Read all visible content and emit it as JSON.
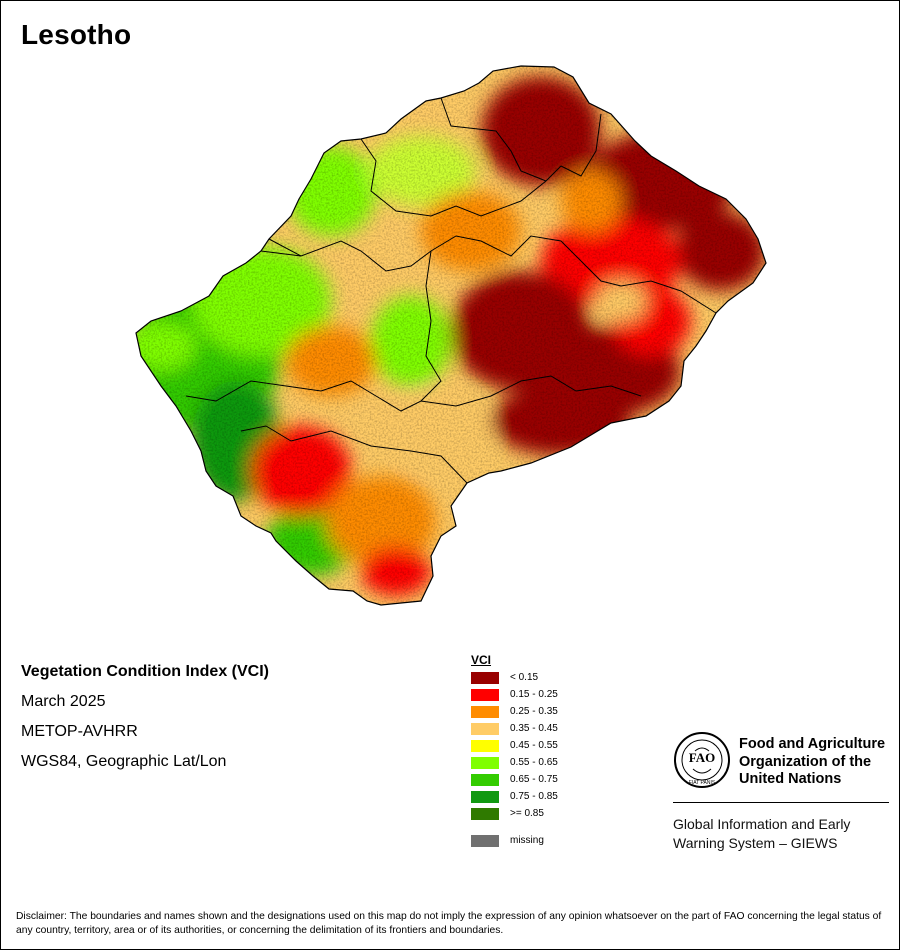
{
  "map": {
    "country": "Lesotho",
    "index_title": "Vegetation Condition Index (VCI)",
    "period": "March 2025",
    "sensor": "METOP-AVHRR",
    "projection": "WGS84, Geographic Lat/Lon"
  },
  "legend": {
    "title": "VCI",
    "classes": [
      {
        "label": "< 0.15",
        "color": "#990000"
      },
      {
        "label": "0.15 - 0.25",
        "color": "#ff0000"
      },
      {
        "label": "0.25 - 0.35",
        "color": "#ff8c00"
      },
      {
        "label": "0.35 - 0.45",
        "color": "#ffcc66"
      },
      {
        "label": "0.45 - 0.55",
        "color": "#ffff00"
      },
      {
        "label": "0.55 - 0.65",
        "color": "#80ff00"
      },
      {
        "label": "0.65 - 0.75",
        "color": "#33cc00"
      },
      {
        "label": "0.75 - 0.85",
        "color": "#119911"
      },
      {
        "label": ">= 0.85",
        "color": "#2f7a00"
      }
    ],
    "missing": {
      "label": "missing",
      "color": "#707070"
    }
  },
  "fao": {
    "emblem_text": "FAO",
    "motto": "FIAT PANIS",
    "org_name": "Food and Agriculture Organization of the United Nations",
    "system_name": "Global Information and Early Warning System – GIEWS"
  },
  "disclaimer": "Disclaimer: The boundaries and names shown and the designations used on this map do not imply the expression of any opinion whatsoever on the part of FAO concerning the legal status of any country, territory, area or of its authorities, or concerning the delimitation of its frontiers and boundaries."
}
